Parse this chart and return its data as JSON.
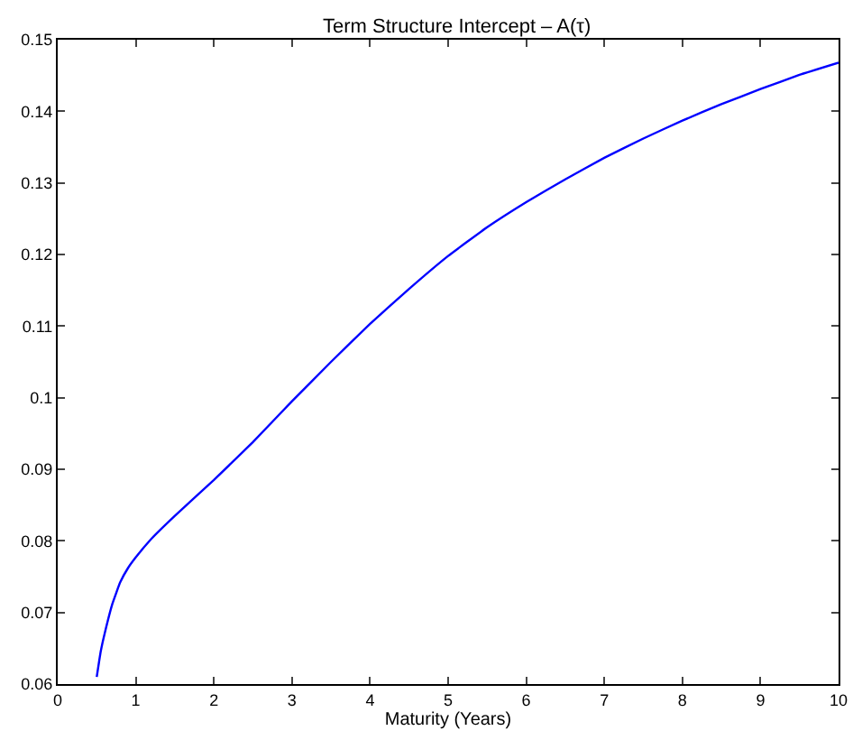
{
  "chart_data": {
    "type": "line",
    "title": "Term Structure Intercept – A(τ)",
    "xlabel": "Maturity (Years)",
    "x": [
      0.5,
      0.55,
      0.6,
      0.7,
      0.8,
      0.9,
      1.0,
      1.2,
      1.5,
      2,
      2.5,
      3,
      3.5,
      4,
      4.5,
      5,
      5.5,
      6,
      6.5,
      7,
      7.5,
      8,
      8.5,
      9,
      9.5,
      10
    ],
    "series": [
      {
        "color": "#0000ff",
        "values": [
          0.061,
          0.0645,
          0.067,
          0.0712,
          0.0742,
          0.0762,
          0.0777,
          0.0803,
          0.0835,
          0.0885,
          0.0938,
          0.0995,
          0.105,
          0.1103,
          0.1152,
          0.1198,
          0.1238,
          0.1273,
          0.1305,
          0.1335,
          0.1362,
          0.1387,
          0.141,
          0.1431,
          0.1451,
          0.1468
        ]
      }
    ],
    "xlim": [
      0,
      10
    ],
    "xticks": [
      0,
      1,
      2,
      3,
      4,
      5,
      6,
      7,
      8,
      9,
      10
    ],
    "ylim": [
      0.06,
      0.15
    ],
    "yticks": [
      0.06,
      0.07,
      0.08,
      0.09,
      0.1,
      0.11,
      0.12,
      0.13,
      0.14,
      0.15
    ],
    "legend": false,
    "marker": "none",
    "line_style": "solid"
  }
}
